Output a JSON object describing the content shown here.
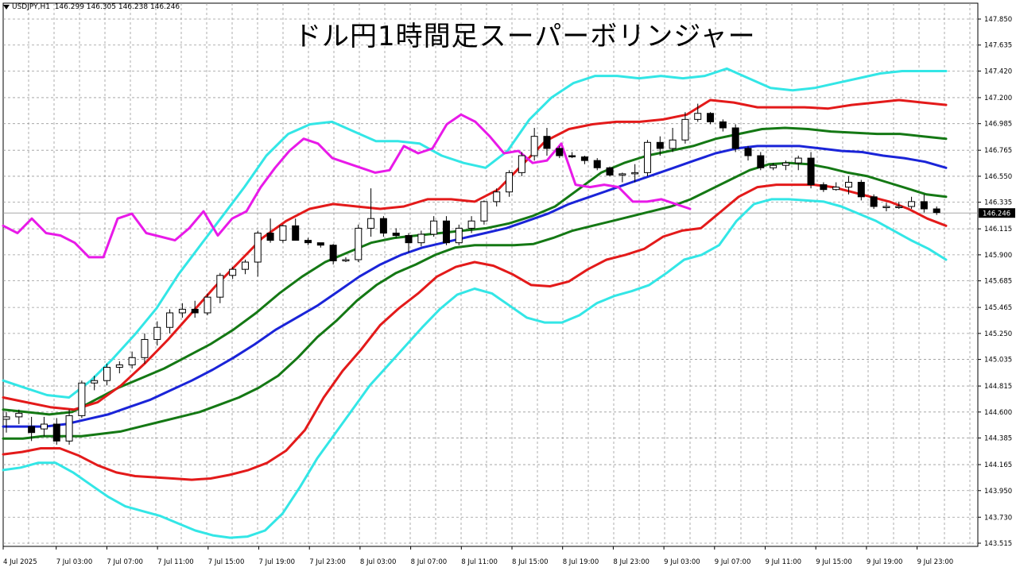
{
  "header": {
    "symbol_text": "USDJPY,H1",
    "ohlc_text": "146.299 146.305 146.238 146.246"
  },
  "title": "ドル円1時間足スーパーボリンジャー",
  "chart_data": {
    "type": "line",
    "title": "ドル円1時間足スーパーボリンジャー",
    "ylim": [
      143.515,
      147.96
    ],
    "grid": true,
    "y_ticks": [
      "147.850",
      "147.635",
      "147.420",
      "147.200",
      "146.985",
      "146.765",
      "146.550",
      "146.335",
      "146.115",
      "145.900",
      "145.685",
      "145.465",
      "145.250",
      "145.035",
      "144.815",
      "144.600",
      "144.385",
      "144.165",
      "143.950",
      "143.730",
      "143.515"
    ],
    "x_ticks": [
      "4 Jul 2025",
      "7 Jul 03:00",
      "7 Jul 07:00",
      "7 Jul 11:00",
      "7 Jul 15:00",
      "7 Jul 19:00",
      "7 Jul 23:00",
      "8 Jul 03:00",
      "8 Jul 07:00",
      "8 Jul 11:00",
      "8 Jul 15:00",
      "8 Jul 19:00",
      "8 Jul 23:00",
      "9 Jul 03:00",
      "9 Jul 07:00",
      "9 Jul 11:00",
      "9 Jul 15:00",
      "9 Jul 19:00",
      "9 Jul 23:00"
    ],
    "current_price": "146.246",
    "candles": [
      [
        144.54,
        144.6,
        144.43,
        144.56
      ],
      [
        144.56,
        144.62,
        144.5,
        144.59
      ],
      [
        144.48,
        144.56,
        144.36,
        144.43
      ],
      [
        144.46,
        144.56,
        144.4,
        144.5
      ],
      [
        144.5,
        144.55,
        144.33,
        144.36
      ],
      [
        144.36,
        144.62,
        144.33,
        144.57
      ],
      [
        144.57,
        144.86,
        144.55,
        144.84
      ],
      [
        144.84,
        144.9,
        144.78,
        144.86
      ],
      [
        144.86,
        145.0,
        144.82,
        144.97
      ],
      [
        144.97,
        145.02,
        144.92,
        144.99
      ],
      [
        144.99,
        145.1,
        144.96,
        145.05
      ],
      [
        145.05,
        145.25,
        145.0,
        145.2
      ],
      [
        145.2,
        145.35,
        145.15,
        145.3
      ],
      [
        145.3,
        145.45,
        145.25,
        145.42
      ],
      [
        145.42,
        145.5,
        145.38,
        145.45
      ],
      [
        145.45,
        145.52,
        145.38,
        145.42
      ],
      [
        145.42,
        145.58,
        145.4,
        145.55
      ],
      [
        145.55,
        145.75,
        145.5,
        145.73
      ],
      [
        145.73,
        145.8,
        145.7,
        145.78
      ],
      [
        145.78,
        145.86,
        145.74,
        145.84
      ],
      [
        145.84,
        146.1,
        145.72,
        146.08
      ],
      [
        146.08,
        146.2,
        146.0,
        146.02
      ],
      [
        146.02,
        146.15,
        146.0,
        146.14
      ],
      [
        146.14,
        146.2,
        146.06,
        146.02
      ],
      [
        146.02,
        146.04,
        145.98,
        146.0
      ],
      [
        146.0,
        146.0,
        145.96,
        145.98
      ],
      [
        145.98,
        145.99,
        145.82,
        145.85
      ],
      [
        145.85,
        145.88,
        145.84,
        145.86
      ],
      [
        145.86,
        146.15,
        145.84,
        146.12
      ],
      [
        146.12,
        146.45,
        146.05,
        146.2
      ],
      [
        146.2,
        146.22,
        146.05,
        146.08
      ],
      [
        146.08,
        146.12,
        146.04,
        146.06
      ],
      [
        146.06,
        146.08,
        145.92,
        146.0
      ],
      [
        146.0,
        146.1,
        145.97,
        146.07
      ],
      [
        146.07,
        146.22,
        146.05,
        146.18
      ],
      [
        146.18,
        146.22,
        145.98,
        146.0
      ],
      [
        146.0,
        146.15,
        145.98,
        146.12
      ],
      [
        146.12,
        146.22,
        146.08,
        146.18
      ],
      [
        146.18,
        146.35,
        146.15,
        146.34
      ],
      [
        146.34,
        146.45,
        146.3,
        146.42
      ],
      [
        146.42,
        146.6,
        146.38,
        146.58
      ],
      [
        146.58,
        146.75,
        146.55,
        146.72
      ],
      [
        146.72,
        146.95,
        146.68,
        146.88
      ],
      [
        146.88,
        146.95,
        146.72,
        146.78
      ],
      [
        146.78,
        146.8,
        146.7,
        146.72
      ],
      [
        146.72,
        146.75,
        146.7,
        146.71
      ],
      [
        146.71,
        146.72,
        146.65,
        146.68
      ],
      [
        146.68,
        146.7,
        146.6,
        146.62
      ],
      [
        146.62,
        146.63,
        146.55,
        146.56
      ],
      [
        146.56,
        146.58,
        146.5,
        146.57
      ],
      [
        146.57,
        146.65,
        146.5,
        146.58
      ],
      [
        146.58,
        146.85,
        146.55,
        146.83
      ],
      [
        146.83,
        146.88,
        146.72,
        146.78
      ],
      [
        146.78,
        146.95,
        146.75,
        146.85
      ],
      [
        146.85,
        147.08,
        146.82,
        147.02
      ],
      [
        147.02,
        147.15,
        147.0,
        147.07
      ],
      [
        147.07,
        147.08,
        146.98,
        147.0
      ],
      [
        147.0,
        147.02,
        146.92,
        146.95
      ],
      [
        146.95,
        146.98,
        146.75,
        146.78
      ],
      [
        146.78,
        146.8,
        146.68,
        146.72
      ],
      [
        146.72,
        146.75,
        146.6,
        146.62
      ],
      [
        146.62,
        146.66,
        146.6,
        146.64
      ],
      [
        146.64,
        146.68,
        146.6,
        146.66
      ],
      [
        146.66,
        146.72,
        146.6,
        146.7
      ],
      [
        146.7,
        146.75,
        146.45,
        146.48
      ],
      [
        146.48,
        146.5,
        146.42,
        146.44
      ],
      [
        146.44,
        146.5,
        146.43,
        146.46
      ],
      [
        146.46,
        146.55,
        146.4,
        146.5
      ],
      [
        146.5,
        146.52,
        146.35,
        146.38
      ],
      [
        146.38,
        146.4,
        146.28,
        146.3
      ],
      [
        146.3,
        146.33,
        146.26,
        146.3
      ],
      [
        146.3,
        146.34,
        146.28,
        146.3
      ],
      [
        146.3,
        146.38,
        146.28,
        146.34
      ],
      [
        146.34,
        146.4,
        146.25,
        146.28
      ],
      [
        146.28,
        146.3,
        146.23,
        146.25
      ]
    ],
    "series": [
      {
        "color": "#33e6e6",
        "values": [
          144.12,
          144.14,
          144.18,
          144.18,
          144.1,
          144.0,
          143.9,
          143.82,
          143.78,
          143.74,
          143.68,
          143.62,
          143.58,
          143.56,
          143.57,
          143.62,
          143.76,
          143.98,
          144.22,
          144.42,
          144.62,
          144.82,
          144.98,
          145.14,
          145.3,
          145.45,
          145.57,
          145.62,
          145.58,
          145.48,
          145.38,
          145.34,
          145.34,
          145.4,
          145.5,
          145.56,
          145.6,
          145.65,
          145.75,
          145.86,
          145.9,
          145.98,
          146.18,
          146.32,
          146.36,
          146.36,
          146.35,
          146.34,
          146.3,
          146.24,
          146.18,
          146.1,
          146.02,
          145.95,
          145.86
        ]
      },
      {
        "color": "#e31a1a",
        "values": [
          144.25,
          144.27,
          144.3,
          144.3,
          144.24,
          144.16,
          144.1,
          144.07,
          144.06,
          144.05,
          144.04,
          144.05,
          144.08,
          144.12,
          144.18,
          144.28,
          144.45,
          144.72,
          144.94,
          145.12,
          145.32,
          145.46,
          145.58,
          145.72,
          145.8,
          145.84,
          145.81,
          145.74,
          145.65,
          145.64,
          145.68,
          145.78,
          145.86,
          145.9,
          145.95,
          146.05,
          146.1,
          146.12,
          146.25,
          146.38,
          146.46,
          146.48,
          146.48,
          146.48,
          146.46,
          146.42,
          146.38,
          146.34,
          146.28,
          146.2,
          146.14
        ]
      },
      {
        "color": "#147814",
        "values": [
          144.38,
          144.38,
          144.4,
          144.4,
          144.4,
          144.42,
          144.44,
          144.48,
          144.52,
          144.56,
          144.6,
          144.66,
          144.72,
          144.8,
          144.9,
          145.05,
          145.22,
          145.36,
          145.52,
          145.65,
          145.75,
          145.82,
          145.9,
          145.96,
          145.98,
          145.98,
          145.98,
          145.99,
          146.04,
          146.1,
          146.14,
          146.18,
          146.22,
          146.26,
          146.3,
          146.36,
          146.44,
          146.52,
          146.6,
          146.65,
          146.66,
          146.65,
          146.62,
          146.58,
          146.55,
          146.5,
          146.45,
          146.4,
          146.38
        ]
      },
      {
        "color": "#1a24d8",
        "values": [
          144.48,
          144.48,
          144.48,
          144.5,
          144.54,
          144.58,
          144.64,
          144.7,
          144.78,
          144.86,
          144.95,
          145.05,
          145.16,
          145.28,
          145.38,
          145.48,
          145.6,
          145.72,
          145.82,
          145.9,
          145.96,
          146.0,
          146.04,
          146.08,
          146.12,
          146.18,
          146.24,
          146.32,
          146.38,
          146.44,
          146.5,
          146.56,
          146.62,
          146.68,
          146.74,
          146.78,
          146.8,
          146.8,
          146.8,
          146.78,
          146.76,
          146.75,
          146.72,
          146.7,
          146.67,
          146.62
        ]
      },
      {
        "color": "#147814",
        "values": [
          144.62,
          144.6,
          144.58,
          144.6,
          144.7,
          144.8,
          144.88,
          144.96,
          145.06,
          145.16,
          145.28,
          145.42,
          145.58,
          145.72,
          145.84,
          145.92,
          146.0,
          146.04,
          146.06,
          146.08,
          146.1,
          146.12,
          146.16,
          146.22,
          146.3,
          146.44,
          146.58,
          146.66,
          146.72,
          146.76,
          146.8,
          146.86,
          146.9,
          146.94,
          146.95,
          146.94,
          146.92,
          146.91,
          146.9,
          146.9,
          146.88,
          146.86
        ]
      },
      {
        "color": "#e31a1a",
        "values": [
          144.72,
          144.68,
          144.64,
          144.62,
          144.68,
          144.82,
          145.0,
          145.2,
          145.42,
          145.64,
          145.84,
          146.04,
          146.18,
          146.28,
          146.32,
          146.3,
          146.28,
          146.3,
          146.36,
          146.36,
          146.34,
          146.44,
          146.64,
          146.84,
          146.94,
          146.98,
          147.0,
          147.0,
          147.02,
          147.06,
          147.18,
          147.16,
          147.12,
          147.12,
          147.12,
          147.11,
          147.14,
          147.16,
          147.18,
          147.16,
          147.14
        ]
      },
      {
        "color": "#33e6e6",
        "values": [
          144.86,
          144.8,
          144.74,
          144.72,
          144.86,
          145.04,
          145.24,
          145.46,
          145.74,
          145.98,
          146.22,
          146.46,
          146.72,
          146.9,
          146.98,
          147.0,
          146.92,
          146.84,
          146.84,
          146.82,
          146.72,
          146.66,
          146.62,
          146.76,
          147.02,
          147.2,
          147.32,
          147.38,
          147.38,
          147.36,
          147.38,
          147.36,
          147.38,
          147.44,
          147.36,
          147.28,
          147.26,
          147.28,
          147.32,
          147.36,
          147.4,
          147.42,
          147.42,
          147.42
        ]
      },
      {
        "color": "#e81ae8",
        "values": [
          146.14,
          146.08,
          146.2,
          146.08,
          146.06,
          146.0,
          145.88,
          145.88,
          146.2,
          146.24,
          146.08,
          146.05,
          146.02,
          146.12,
          146.26,
          146.06,
          146.2,
          146.26,
          146.46,
          146.62,
          146.76,
          146.86,
          146.82,
          146.7,
          146.66,
          146.62,
          146.58,
          146.6,
          146.8,
          146.74,
          146.78,
          146.98,
          147.06,
          147.0,
          146.88,
          146.74,
          146.76,
          146.66,
          146.68,
          146.82,
          146.48,
          146.46,
          146.48,
          146.46,
          146.34,
          146.34,
          146.36,
          146.32,
          146.28
        ]
      }
    ]
  }
}
